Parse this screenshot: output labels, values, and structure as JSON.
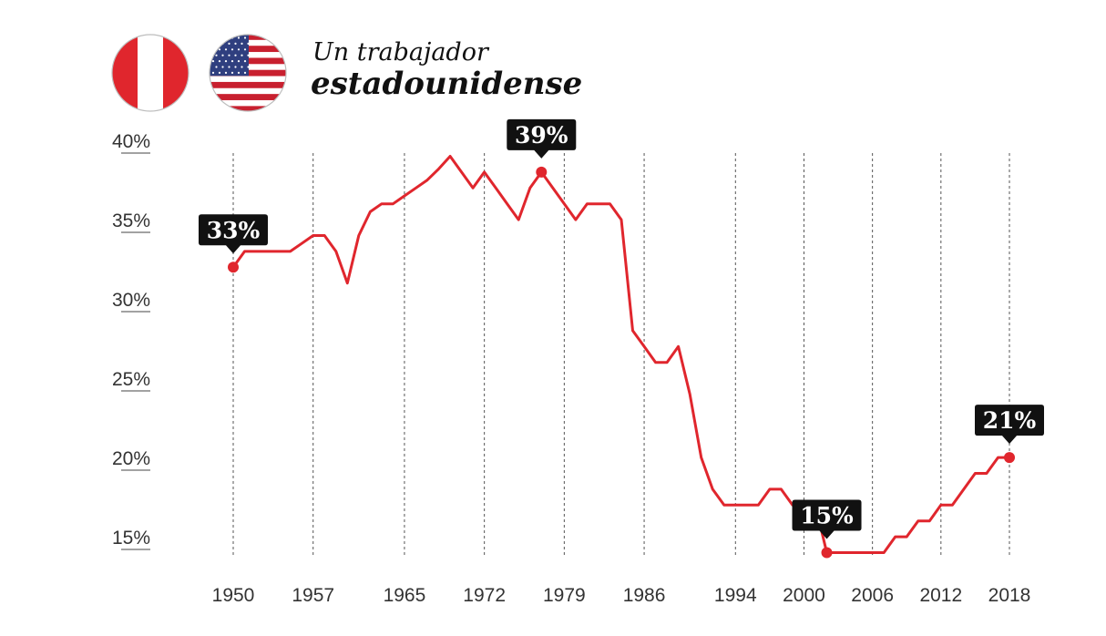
{
  "header": {
    "title_line1": "Un trabajador",
    "title_line2": "estadounidense"
  },
  "colors": {
    "line": "#e0262d",
    "callout_bg": "#111111",
    "callout_text": "#ffffff",
    "peru_red": "#e0262d",
    "usa_red": "#c8202f",
    "usa_blue": "#2f3f7f"
  },
  "icons": [
    "peru-flag-icon",
    "usa-flag-icon"
  ],
  "chart_data": {
    "type": "line",
    "title": "",
    "xlabel": "",
    "ylabel": "",
    "ylim": [
      14,
      40
    ],
    "xlim": [
      1950,
      2018
    ],
    "y_ticks": [
      40,
      35,
      30,
      25,
      20,
      15
    ],
    "y_tick_labels": [
      "40%",
      "35%",
      "30%",
      "25%",
      "20%",
      "15%"
    ],
    "x_ticks": [
      1950,
      1957,
      1965,
      1972,
      1979,
      1986,
      1994,
      2000,
      2006,
      2012,
      2018
    ],
    "x_tick_labels": [
      "1950",
      "1957",
      "1965",
      "1972",
      "1979",
      "1986",
      "1994",
      "2000",
      "2006",
      "2012",
      "2018"
    ],
    "grid": "vertical dashed at each x tick",
    "series": [
      {
        "name": "",
        "x": [
          1950,
          1951,
          1952,
          1953,
          1954,
          1955,
          1956,
          1957,
          1958,
          1959,
          1960,
          1961,
          1962,
          1963,
          1964,
          1965,
          1966,
          1967,
          1968,
          1969,
          1970,
          1971,
          1972,
          1973,
          1974,
          1975,
          1976,
          1977,
          1978,
          1979,
          1980,
          1981,
          1982,
          1983,
          1984,
          1985,
          1986,
          1987,
          1988,
          1989,
          1990,
          1991,
          1992,
          1993,
          1994,
          1995,
          1996,
          1997,
          1998,
          1999,
          2000,
          2001,
          2002,
          2003,
          2004,
          2005,
          2006,
          2007,
          2008,
          2009,
          2010,
          2011,
          2012,
          2013,
          2014,
          2015,
          2016,
          2017,
          2018
        ],
        "values": [
          32.8,
          33.8,
          33.8,
          33.8,
          33.8,
          33.8,
          34.3,
          34.8,
          34.8,
          33.8,
          31.8,
          34.8,
          36.3,
          36.8,
          36.8,
          37.3,
          37.8,
          38.3,
          39.0,
          39.8,
          38.8,
          37.8,
          38.8,
          37.8,
          36.8,
          35.8,
          37.8,
          38.8,
          37.8,
          36.8,
          35.8,
          36.8,
          36.8,
          36.8,
          35.8,
          28.8,
          27.8,
          26.8,
          26.8,
          27.8,
          24.8,
          20.8,
          18.8,
          17.8,
          17.8,
          17.8,
          17.8,
          18.8,
          18.8,
          17.8,
          17.8,
          17.8,
          14.8,
          14.8,
          14.8,
          14.8,
          14.8,
          14.8,
          15.8,
          15.8,
          16.8,
          16.8,
          17.8,
          17.8,
          18.8,
          19.8,
          19.8,
          20.8,
          20.8
        ]
      }
    ],
    "callouts": [
      {
        "x": 1950,
        "y": 32.8,
        "label": "33%"
      },
      {
        "x": 1977,
        "y": 38.8,
        "label": "39%"
      },
      {
        "x": 2002,
        "y": 14.8,
        "label": "15%"
      },
      {
        "x": 2018,
        "y": 20.8,
        "label": "21%"
      }
    ]
  }
}
